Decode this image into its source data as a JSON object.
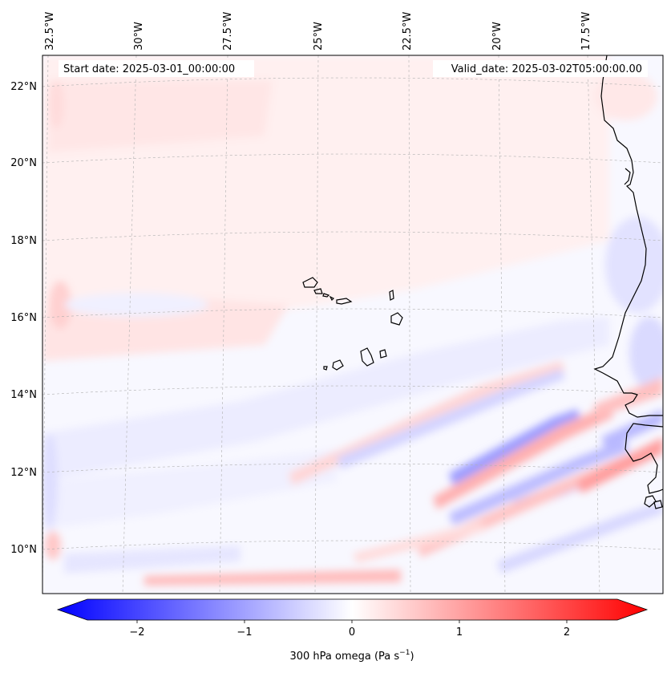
{
  "map": {
    "start_label": "Start date: 2025-03-01_00:00:00",
    "valid_label": "Valid_date: 2025-03-02T05:00:00.00",
    "lon_labels": [
      "32.5°W",
      "30°W",
      "27.5°W",
      "25°W",
      "22.5°W",
      "20°W",
      "17.5°W"
    ],
    "lat_labels": [
      "22°N",
      "20°N",
      "18°N",
      "16°N",
      "14°N",
      "12°N",
      "10°N"
    ],
    "colorbar": {
      "ticks": [
        "−2",
        "−1",
        "0",
        "1",
        "2"
      ],
      "label_main": "300 hPa omega (Pa s",
      "label_exp": "−1",
      "label_close": ")",
      "range": [
        -2.6,
        2.6
      ]
    },
    "colors": {
      "negative": "#0000ff",
      "positive": "#ff0000",
      "neutral": "#ffffff",
      "coast": "#000000",
      "grid": "#b0b0b0"
    }
  }
}
